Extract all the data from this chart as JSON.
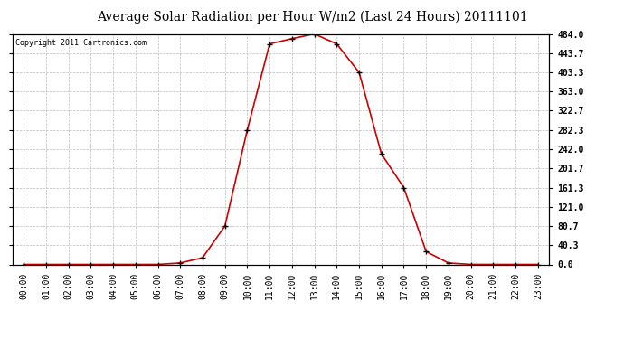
{
  "title": "Average Solar Radiation per Hour W/m2 (Last 24 Hours) 20111101",
  "copyright": "Copyright 2011 Cartronics.com",
  "hours": [
    "00:00",
    "01:00",
    "02:00",
    "03:00",
    "04:00",
    "05:00",
    "06:00",
    "07:00",
    "08:00",
    "09:00",
    "10:00",
    "11:00",
    "12:00",
    "13:00",
    "14:00",
    "15:00",
    "16:00",
    "17:00",
    "18:00",
    "19:00",
    "20:00",
    "21:00",
    "22:00",
    "23:00"
  ],
  "values": [
    0.0,
    0.0,
    0.0,
    0.0,
    0.0,
    0.0,
    0.0,
    3.0,
    14.0,
    80.7,
    282.3,
    463.0,
    474.0,
    484.0,
    463.0,
    403.3,
    232.0,
    161.3,
    27.0,
    3.0,
    0.0,
    0.0,
    0.0,
    0.0
  ],
  "line_color": "#cc0000",
  "marker_color": "#000000",
  "bg_color": "#ffffff",
  "grid_color": "#bbbbbb",
  "ytick_labels": [
    "0.0",
    "40.3",
    "80.7",
    "121.0",
    "161.3",
    "201.7",
    "242.0",
    "282.3",
    "322.7",
    "363.0",
    "403.3",
    "443.7",
    "484.0"
  ],
  "ytick_values": [
    0.0,
    40.3,
    80.7,
    121.0,
    161.3,
    201.7,
    242.0,
    282.3,
    322.7,
    363.0,
    403.3,
    443.7,
    484.0
  ],
  "ymax": 484.0,
  "ymin": 0.0,
  "title_fontsize": 10,
  "copyright_fontsize": 6,
  "tick_fontsize": 7,
  "ytick_fontsize": 7
}
